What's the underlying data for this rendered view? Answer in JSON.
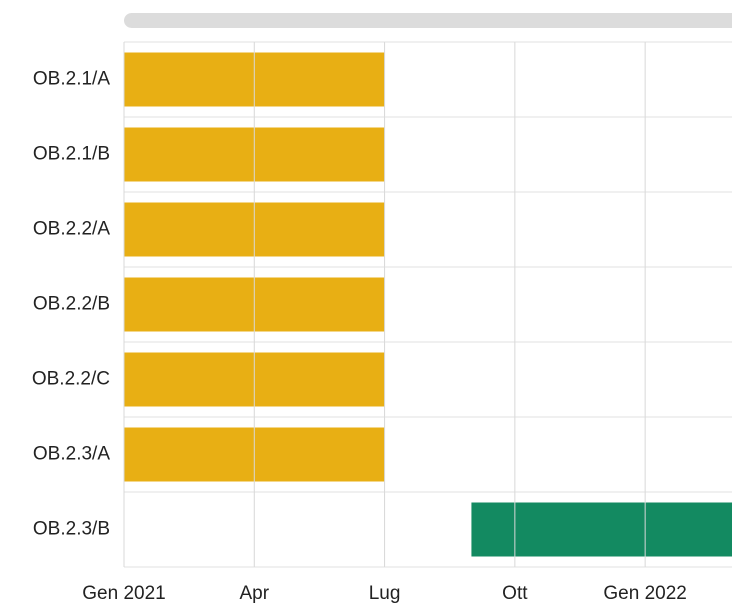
{
  "chart_data": {
    "type": "gantt",
    "categories": [
      "OB.2.1/A",
      "OB.2.1/B",
      "OB.2.2/A",
      "OB.2.2/B",
      "OB.2.2/C",
      "OB.2.3/A",
      "OB.2.3/B"
    ],
    "start": [
      "2021-01",
      "2021-01",
      "2021-01",
      "2021-01",
      "2021-01",
      "2021-01",
      "2021-09"
    ],
    "end": [
      "2021-07",
      "2021-07",
      "2021-07",
      "2021-07",
      "2021-07",
      "2021-07",
      "2022-03"
    ],
    "colors": [
      "#e8af14",
      "#e8af14",
      "#e8af14",
      "#e8af14",
      "#e8af14",
      "#e8af14",
      "#138a61"
    ],
    "xlim": [
      "2021-01",
      "2022-03"
    ],
    "xticks": [
      {
        "value": "2021-01",
        "label": "Gen 2021"
      },
      {
        "value": "2021-04",
        "label": "Apr"
      },
      {
        "value": "2021-07",
        "label": "Lug"
      },
      {
        "value": "2021-10",
        "label": "Ott"
      },
      {
        "value": "2022-01",
        "label": "Gen 2022"
      }
    ],
    "grid": true
  }
}
